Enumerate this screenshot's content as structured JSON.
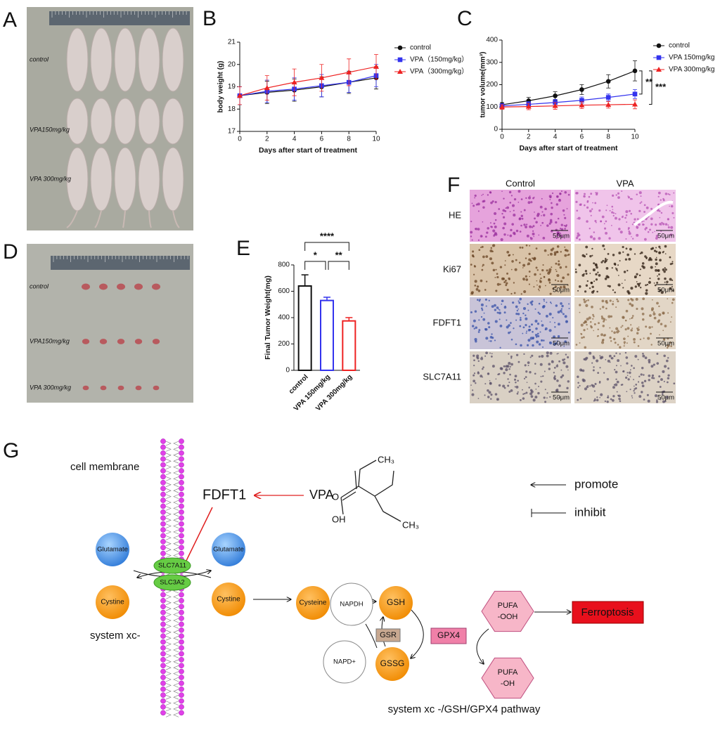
{
  "panel_labels": [
    "A",
    "B",
    "C",
    "D",
    "E",
    "F",
    "G"
  ],
  "photo_a": {
    "labels": [
      "control",
      "VPA150mg/kg",
      "VPA 300mg/kg"
    ]
  },
  "photo_d": {
    "labels": [
      "control",
      "VPA150mg/kg",
      "VPA 300mg/kg"
    ]
  },
  "chart_data": [
    {
      "type": "line",
      "xlabel": "Days after start of treatment",
      "ylabel": "body weight (g)",
      "x": [
        0,
        2,
        4,
        6,
        8,
        10
      ],
      "xlim": [
        0,
        10
      ],
      "xticks": [
        0,
        2,
        4,
        6,
        8,
        10
      ],
      "ylim": [
        17,
        21
      ],
      "yticks": [
        17,
        18,
        19,
        20,
        21
      ],
      "legend": "right",
      "series": [
        {
          "name": "control",
          "color": "#111111",
          "marker": "circle",
          "values": [
            18.6,
            18.75,
            18.85,
            19.0,
            19.2,
            19.4
          ],
          "errors": [
            0.4,
            0.5,
            0.5,
            0.45,
            0.5,
            0.5
          ]
        },
        {
          "name": "VPA（150mg/kg）",
          "color": "#3333ee",
          "marker": "square",
          "values": [
            18.6,
            18.8,
            18.9,
            19.05,
            19.2,
            19.5
          ],
          "errors": [
            0.4,
            0.5,
            0.5,
            0.5,
            0.45,
            0.5
          ]
        },
        {
          "name": "VPA（300mg/kg）",
          "color": "#ee2222",
          "marker": "triangle",
          "values": [
            18.6,
            18.95,
            19.2,
            19.4,
            19.65,
            19.9
          ],
          "errors": [
            0.4,
            0.55,
            0.6,
            0.6,
            0.6,
            0.55
          ]
        }
      ]
    },
    {
      "type": "line",
      "xlabel": "Days after start of treatment",
      "ylabel": "tumor volume(mm³)",
      "x": [
        0,
        2,
        4,
        6,
        8,
        10
      ],
      "xlim": [
        0,
        10
      ],
      "xticks": [
        0,
        2,
        4,
        6,
        8,
        10
      ],
      "ylim": [
        0,
        400
      ],
      "yticks": [
        0,
        100,
        200,
        300,
        400
      ],
      "legend": "right",
      "series": [
        {
          "name": "control",
          "color": "#111111",
          "marker": "circle",
          "values": [
            110,
            128,
            150,
            178,
            215,
            262
          ],
          "errors": [
            10,
            15,
            18,
            22,
            30,
            45
          ]
        },
        {
          "name": "VPA 150mg/kg",
          "color": "#3333ee",
          "marker": "square",
          "values": [
            105,
            112,
            120,
            130,
            143,
            158
          ],
          "errors": [
            10,
            12,
            14,
            15,
            15,
            20
          ]
        },
        {
          "name": "VPA 300mg/kg",
          "color": "#ee2222",
          "marker": "triangle",
          "values": [
            100,
            102,
            105,
            108,
            110,
            112
          ],
          "errors": [
            10,
            14,
            15,
            15,
            15,
            20
          ]
        }
      ],
      "annotations": [
        "**",
        "***"
      ]
    },
    {
      "type": "bar",
      "ylabel": "Final Tumor Weight(mg)",
      "categories": [
        "control",
        "VPA 150mg/kg",
        "VPA 300mg/kg"
      ],
      "values": [
        640,
        530,
        375
      ],
      "errors": [
        85,
        25,
        25
      ],
      "colors": [
        "#111111",
        "#3333ee",
        "#ee2222"
      ],
      "ylim": [
        0,
        800
      ],
      "yticks": [
        0,
        200,
        400,
        600,
        800
      ],
      "annotations": [
        "****",
        "*",
        "**"
      ]
    }
  ],
  "histology": {
    "columns": [
      "Control",
      "VPA"
    ],
    "rows": [
      "HE",
      "Ki67",
      "FDFT1",
      "SLC7A11"
    ],
    "scale_bar": "50μm"
  },
  "pathway": {
    "membrane_label": "cell membrane",
    "regulator": "FDFT1",
    "drug": "VPA",
    "molecule": [
      "CH₃",
      "O",
      "OH",
      "CH₃"
    ],
    "legend": [
      "promote",
      "inhibit"
    ],
    "glutamate": [
      "Glutamate",
      "Glutamate"
    ],
    "transporter": [
      "SLC7A11",
      "SLC3A2"
    ],
    "cystine": [
      "Cystine",
      "Cystine"
    ],
    "system": "system xc-",
    "cysteine": "Cysteine",
    "gsh": "GSH",
    "gssg": "GSSG",
    "napdh": "NAPDH",
    "napd": "NAPD+",
    "gsr": "GSR",
    "gpx4": "GPX4",
    "pufa_ooh": [
      "PUFA",
      "-OOH"
    ],
    "pufa_oh": [
      "PUFA",
      "-OH"
    ],
    "ferroptosis": "Ferroptosis",
    "caption": "system xc -/GSH/GPX4 pathway"
  }
}
